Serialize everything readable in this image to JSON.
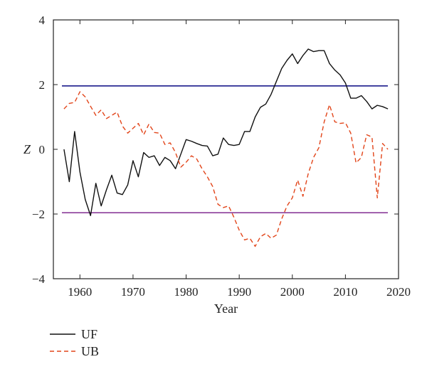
{
  "chart_data": {
    "type": "line",
    "title": "",
    "xlabel": "Year",
    "ylabel": "Z",
    "xlim": [
      1955,
      2020
    ],
    "ylim": [
      -4,
      4
    ],
    "xticks": [
      1960,
      1970,
      1980,
      1990,
      2000,
      2010,
      2020
    ],
    "yticks": [
      -4,
      -2,
      0,
      2,
      4
    ],
    "xtick_labels": [
      "1960",
      "1970",
      "1980",
      "1990",
      "2000",
      "2010",
      "2020"
    ],
    "ytick_labels": [
      "−4",
      "−2",
      "0",
      "2",
      "4"
    ],
    "grid": false,
    "legend_position": "bottom-left, below plot",
    "reference_lines": [
      {
        "y": 1.96,
        "color": "#1a1a8c"
      },
      {
        "y": -1.96,
        "color": "#8b3d9a"
      }
    ],
    "x": [
      1957,
      1958,
      1959,
      1960,
      1961,
      1962,
      1963,
      1964,
      1965,
      1966,
      1967,
      1968,
      1969,
      1970,
      1971,
      1972,
      1973,
      1974,
      1975,
      1976,
      1977,
      1978,
      1979,
      1980,
      1981,
      1982,
      1983,
      1984,
      1985,
      1986,
      1987,
      1988,
      1989,
      1990,
      1991,
      1992,
      1993,
      1994,
      1995,
      1996,
      1997,
      1998,
      1999,
      2000,
      2001,
      2002,
      2003,
      2004,
      2005,
      2006,
      2007,
      2008,
      2009,
      2010,
      2011,
      2012,
      2013,
      2014,
      2015,
      2016,
      2017,
      2018
    ],
    "series": [
      {
        "name": "UF",
        "color": "#111111",
        "style": "solid",
        "values": [
          0.0,
          -1.0,
          0.55,
          -0.7,
          -1.55,
          -2.05,
          -1.05,
          -1.75,
          -1.25,
          -0.8,
          -1.35,
          -1.4,
          -1.1,
          -0.35,
          -0.85,
          -0.1,
          -0.25,
          -0.2,
          -0.5,
          -0.25,
          -0.35,
          -0.6,
          -0.15,
          0.3,
          0.25,
          0.18,
          0.12,
          0.1,
          -0.2,
          -0.15,
          0.35,
          0.15,
          0.12,
          0.15,
          0.55,
          0.55,
          1.0,
          1.3,
          1.4,
          1.7,
          2.1,
          2.5,
          2.75,
          2.95,
          2.65,
          2.9,
          3.1,
          3.02,
          3.05,
          3.05,
          2.65,
          2.45,
          2.3,
          2.05,
          1.58,
          1.58,
          1.66,
          1.48,
          1.25,
          1.36,
          1.32,
          1.25
        ]
      },
      {
        "name": "UB",
        "color": "#e2451a",
        "style": "dashed",
        "values": [
          1.25,
          1.42,
          1.45,
          1.78,
          1.62,
          1.33,
          1.05,
          1.22,
          0.95,
          1.05,
          1.15,
          0.72,
          0.5,
          0.65,
          0.8,
          0.45,
          0.78,
          0.52,
          0.5,
          0.15,
          0.2,
          -0.1,
          -0.55,
          -0.4,
          -0.2,
          -0.3,
          -0.6,
          -0.85,
          -1.15,
          -1.7,
          -1.8,
          -1.75,
          -2.1,
          -2.5,
          -2.8,
          -2.75,
          -3.0,
          -2.7,
          -2.6,
          -2.75,
          -2.65,
          -2.15,
          -1.75,
          -1.5,
          -0.95,
          -1.45,
          -0.75,
          -0.25,
          0.05,
          0.85,
          1.38,
          0.85,
          0.8,
          0.82,
          0.5,
          -0.42,
          -0.25,
          0.45,
          0.38,
          -1.5,
          0.18,
          0.0
        ]
      }
    ]
  },
  "legend": {
    "items": [
      {
        "label": "UF",
        "color": "#111111",
        "style": "solid"
      },
      {
        "label": "UB",
        "color": "#e2451a",
        "style": "dashed"
      }
    ]
  }
}
